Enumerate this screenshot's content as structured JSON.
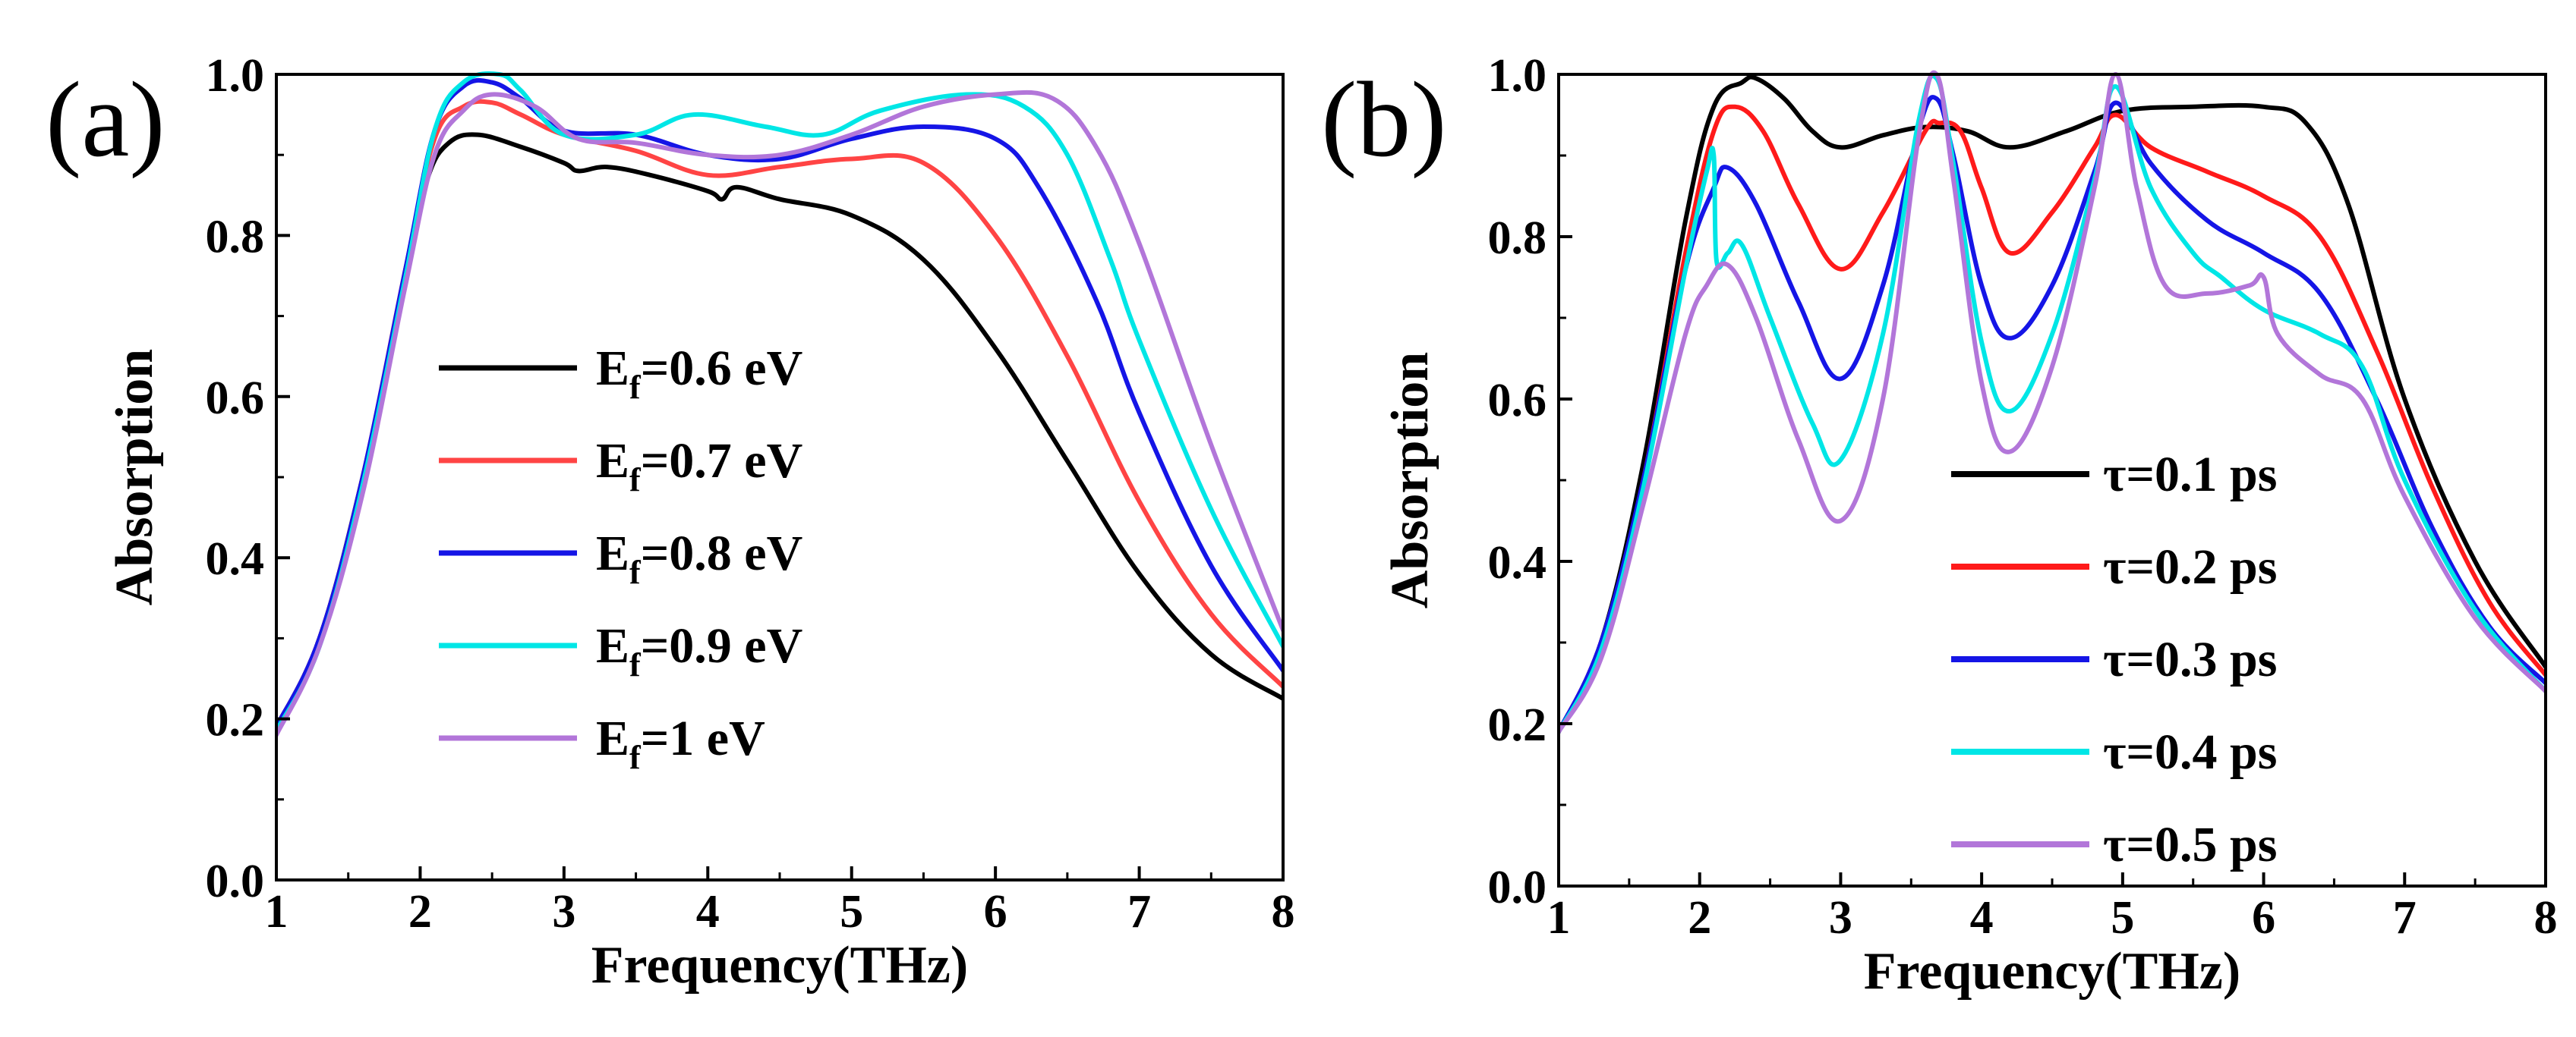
{
  "chart_data": [
    {
      "type": "line",
      "panel_label": "(a)",
      "xlabel": "Frequency(THz)",
      "ylabel": "Absorption",
      "xlim": [
        1,
        8
      ],
      "ylim": [
        0,
        1
      ],
      "xticks": [
        "1",
        "2",
        "3",
        "4",
        "5",
        "6",
        "7",
        "8"
      ],
      "yticks": [
        "0.0",
        "0.2",
        "0.4",
        "0.6",
        "0.8",
        "1.0"
      ],
      "legend_position": "center-left",
      "series": [
        {
          "name": "E_f=0.6 eV",
          "label_main": "E",
          "label_sub": "f",
          "label_rest": "=0.6 eV",
          "color": "#000000",
          "x": [
            1,
            1.3,
            1.6,
            1.9,
            2.05,
            2.2,
            2.4,
            2.7,
            3.0,
            3.1,
            3.3,
            3.6,
            4.0,
            4.1,
            4.2,
            4.5,
            5.0,
            5.5,
            6.0,
            6.5,
            7.0,
            7.5,
            8.0
          ],
          "y": [
            0.19,
            0.3,
            0.5,
            0.75,
            0.87,
            0.915,
            0.925,
            0.91,
            0.89,
            0.88,
            0.885,
            0.875,
            0.855,
            0.845,
            0.86,
            0.845,
            0.825,
            0.77,
            0.66,
            0.52,
            0.38,
            0.28,
            0.225
          ]
        },
        {
          "name": "E_f=0.7 eV",
          "label_main": "E",
          "label_sub": "f",
          "label_rest": "=0.7 eV",
          "color": "#ff4444",
          "x": [
            1,
            1.3,
            1.6,
            1.9,
            2.1,
            2.3,
            2.5,
            2.7,
            3.0,
            3.5,
            4.0,
            4.5,
            5.0,
            5.5,
            6.0,
            6.5,
            7.0,
            7.5,
            8.0
          ],
          "y": [
            0.19,
            0.3,
            0.5,
            0.76,
            0.92,
            0.96,
            0.965,
            0.95,
            0.925,
            0.905,
            0.875,
            0.885,
            0.895,
            0.89,
            0.8,
            0.65,
            0.47,
            0.33,
            0.24
          ]
        },
        {
          "name": "E_f=0.8 eV",
          "label_main": "E",
          "label_sub": "f",
          "label_rest": "=0.8 eV",
          "color": "#1515e6",
          "x": [
            1,
            1.3,
            1.6,
            1.9,
            2.1,
            2.3,
            2.5,
            2.7,
            3.0,
            3.5,
            4.0,
            4.5,
            5.0,
            5.5,
            6.0,
            6.3,
            6.7,
            7.0,
            7.5,
            8.0
          ],
          "y": [
            0.19,
            0.3,
            0.5,
            0.76,
            0.93,
            0.985,
            0.99,
            0.97,
            0.93,
            0.925,
            0.9,
            0.895,
            0.92,
            0.935,
            0.92,
            0.86,
            0.72,
            0.58,
            0.39,
            0.26
          ]
        },
        {
          "name": "E_f=0.9 eV",
          "label_main": "E",
          "label_sub": "f",
          "label_rest": "=0.9 eV",
          "color": "#00e6e6",
          "x": [
            1,
            1.3,
            1.6,
            1.9,
            2.1,
            2.3,
            2.55,
            2.7,
            3.0,
            3.5,
            3.9,
            4.4,
            4.8,
            5.2,
            5.8,
            6.2,
            6.5,
            6.8,
            7.0,
            7.5,
            8.0
          ],
          "y": [
            0.185,
            0.29,
            0.49,
            0.75,
            0.93,
            0.99,
            1.0,
            0.98,
            0.925,
            0.925,
            0.95,
            0.935,
            0.925,
            0.955,
            0.975,
            0.96,
            0.9,
            0.77,
            0.67,
            0.46,
            0.29
          ]
        },
        {
          "name": "E_f=1 eV",
          "label_main": "E",
          "label_sub": "f",
          "label_rest": "=1 eV",
          "color": "#b276d9",
          "x": [
            1,
            1.3,
            1.6,
            1.9,
            2.1,
            2.3,
            2.5,
            2.8,
            3.1,
            3.5,
            4.0,
            4.5,
            5.0,
            5.5,
            6.0,
            6.4,
            6.7,
            7.0,
            7.5,
            8.0
          ],
          "y": [
            0.18,
            0.29,
            0.48,
            0.74,
            0.9,
            0.955,
            0.975,
            0.96,
            0.92,
            0.915,
            0.9,
            0.9,
            0.925,
            0.96,
            0.975,
            0.97,
            0.91,
            0.79,
            0.54,
            0.31
          ]
        }
      ]
    },
    {
      "type": "line",
      "panel_label": "(b)",
      "xlabel": "Frequency(THz)",
      "ylabel": "Absorption",
      "xlim": [
        1,
        8
      ],
      "ylim": [
        0,
        1
      ],
      "xticks": [
        "1",
        "2",
        "3",
        "4",
        "5",
        "6",
        "7",
        "8"
      ],
      "yticks": [
        "0.0",
        "0.2",
        "0.4",
        "0.6",
        "0.8",
        "1.0"
      ],
      "legend_position": "lower-right",
      "series": [
        {
          "name": "τ=0.1 ps",
          "label_main": "τ=0.1 ps",
          "color": "#000000",
          "x": [
            1,
            1.3,
            1.6,
            1.9,
            2.1,
            2.3,
            2.4,
            2.6,
            2.8,
            3.0,
            3.3,
            3.6,
            3.9,
            4.2,
            4.6,
            5.0,
            5.5,
            6.0,
            6.3,
            6.6,
            7.0,
            7.5,
            8.0
          ],
          "y": [
            0.19,
            0.3,
            0.52,
            0.82,
            0.96,
            0.99,
            0.995,
            0.97,
            0.93,
            0.91,
            0.925,
            0.935,
            0.93,
            0.91,
            0.93,
            0.955,
            0.96,
            0.96,
            0.94,
            0.84,
            0.6,
            0.4,
            0.27
          ]
        },
        {
          "name": "τ=0.2 ps",
          "label_main": "τ=0.2 ps",
          "color": "#ff1a1a",
          "x": [
            1,
            1.3,
            1.6,
            1.9,
            2.1,
            2.25,
            2.45,
            2.7,
            3.0,
            3.3,
            3.6,
            3.7,
            3.85,
            4.0,
            4.2,
            4.5,
            4.8,
            4.95,
            5.2,
            5.6,
            6.0,
            6.4,
            6.8,
            7.2,
            7.6,
            8.0
          ],
          "y": [
            0.19,
            0.3,
            0.5,
            0.78,
            0.93,
            0.96,
            0.93,
            0.84,
            0.76,
            0.83,
            0.93,
            0.94,
            0.93,
            0.86,
            0.78,
            0.83,
            0.91,
            0.95,
            0.91,
            0.88,
            0.85,
            0.8,
            0.66,
            0.49,
            0.35,
            0.26
          ]
        },
        {
          "name": "τ=0.3 ps",
          "label_main": "τ=0.3 ps",
          "color": "#1515e6",
          "x": [
            1,
            1.3,
            1.6,
            1.9,
            2.1,
            2.2,
            2.4,
            2.7,
            3.0,
            3.3,
            3.55,
            3.68,
            3.8,
            4.0,
            4.2,
            4.5,
            4.8,
            4.95,
            5.2,
            5.6,
            6.0,
            6.4,
            6.8,
            7.2,
            7.6,
            8.0
          ],
          "y": [
            0.19,
            0.3,
            0.5,
            0.76,
            0.86,
            0.885,
            0.84,
            0.72,
            0.625,
            0.74,
            0.93,
            0.97,
            0.9,
            0.74,
            0.675,
            0.74,
            0.88,
            0.965,
            0.89,
            0.82,
            0.78,
            0.73,
            0.6,
            0.44,
            0.32,
            0.25
          ]
        },
        {
          "name": "τ=0.4 ps",
          "label_main": "τ=0.4 ps",
          "color": "#00e6e6",
          "x": [
            1,
            1.3,
            1.6,
            1.9,
            2.05,
            2.1,
            2.12,
            2.2,
            2.3,
            2.5,
            2.8,
            3.0,
            3.3,
            3.55,
            3.68,
            3.8,
            4.0,
            4.2,
            4.5,
            4.8,
            4.95,
            5.2,
            5.5,
            5.7,
            6.0,
            6.4,
            6.7,
            7.0,
            7.5,
            8.0
          ],
          "y": [
            0.19,
            0.29,
            0.49,
            0.76,
            0.88,
            0.9,
            0.77,
            0.78,
            0.79,
            0.7,
            0.57,
            0.525,
            0.68,
            0.94,
            0.995,
            0.89,
            0.67,
            0.585,
            0.68,
            0.87,
            0.985,
            0.86,
            0.78,
            0.75,
            0.71,
            0.68,
            0.64,
            0.5,
            0.34,
            0.24
          ]
        },
        {
          "name": "τ=0.5 ps",
          "label_main": "τ=0.5 ps",
          "color": "#b276d9",
          "x": [
            1,
            1.3,
            1.6,
            1.9,
            2.05,
            2.2,
            2.4,
            2.7,
            3.0,
            3.3,
            3.55,
            3.68,
            3.8,
            4.0,
            4.2,
            4.5,
            4.8,
            4.95,
            5.1,
            5.3,
            5.6,
            5.9,
            6.0,
            6.1,
            6.4,
            6.7,
            7.0,
            7.5,
            8.0
          ],
          "y": [
            0.19,
            0.28,
            0.47,
            0.68,
            0.74,
            0.765,
            0.7,
            0.55,
            0.45,
            0.6,
            0.92,
            1.0,
            0.87,
            0.62,
            0.535,
            0.64,
            0.86,
            1.0,
            0.86,
            0.74,
            0.73,
            0.74,
            0.75,
            0.68,
            0.63,
            0.6,
            0.48,
            0.33,
            0.24
          ]
        }
      ]
    }
  ]
}
